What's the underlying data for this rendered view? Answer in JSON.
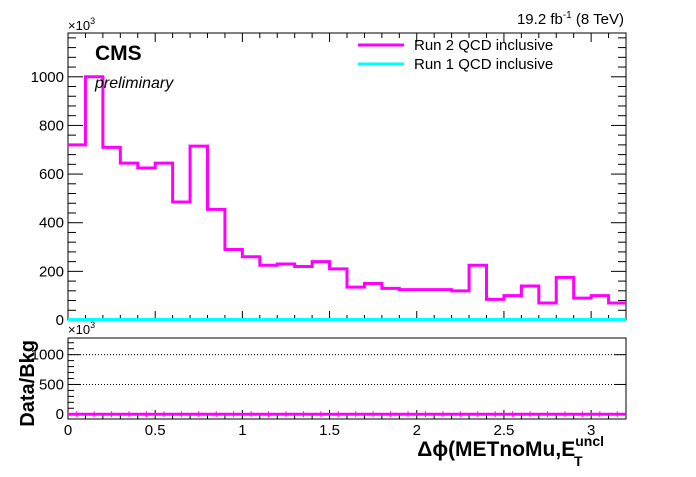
{
  "chart_data": [
    {
      "type": "line",
      "panel": "main",
      "exponent_label": "×10",
      "exponent_power": "3",
      "lumi_value": "19.2 fb",
      "lumi_power": "-1",
      "lumi_energy": " (8 TeV)",
      "cms_label": "CMS",
      "cms_sublabel": "preliminary",
      "xlim": [
        0,
        3.2
      ],
      "ylim": [
        0,
        1180
      ],
      "grid": false,
      "legend_position": "top-right",
      "x_ticks": [
        0,
        0.5,
        1,
        1.5,
        2,
        2.5,
        3
      ],
      "x_tick_labels": [
        "0",
        "0.5",
        "1",
        "1.5",
        "2",
        "2.5",
        "3"
      ],
      "y_ticks": [
        0,
        200,
        400,
        600,
        800,
        1000
      ],
      "y_tick_labels": [
        "0",
        "200",
        "400",
        "600",
        "800",
        "1000"
      ],
      "bin_edges": [
        0,
        0.1,
        0.2,
        0.3,
        0.4,
        0.5,
        0.6,
        0.7,
        0.8,
        0.9,
        1.0,
        1.1,
        1.2,
        1.3,
        1.4,
        1.5,
        1.6,
        1.7,
        1.8,
        1.9,
        2.0,
        2.1,
        2.2,
        2.3,
        2.4,
        2.5,
        2.6,
        2.7,
        2.8,
        2.9,
        3.0,
        3.1,
        3.2
      ],
      "series": [
        {
          "name": "Run 2 QCD inclusive",
          "color": "#ff00ff",
          "values": [
            720,
            1000,
            710,
            645,
            625,
            645,
            485,
            715,
            455,
            290,
            260,
            225,
            230,
            220,
            240,
            210,
            135,
            150,
            130,
            125,
            125,
            125,
            120,
            225,
            85,
            100,
            140,
            70,
            175,
            90,
            100,
            70
          ]
        },
        {
          "name": "Run 1 QCD inclusive",
          "color": "#00ffff",
          "values": [
            2,
            2,
            2,
            2,
            2,
            2,
            2,
            2,
            2,
            2,
            2,
            2,
            2,
            2,
            2,
            2,
            2,
            2,
            2,
            2,
            2,
            2,
            2,
            2,
            2,
            2,
            2,
            2,
            2,
            2,
            2,
            2
          ]
        }
      ]
    },
    {
      "type": "line",
      "panel": "ratio",
      "ylabel": "Data/Bkg",
      "xlabel_base": "Δϕ(METnoMu,E",
      "xlabel_sub": "T",
      "xlabel_sup": "uncl",
      "exponent_label": "×10",
      "exponent_power": "3",
      "xlim": [
        0,
        3.2
      ],
      "ylim": [
        -80,
        1280
      ],
      "grid_lines": [
        500,
        1000
      ],
      "y_ticks": [
        0,
        500,
        1000
      ],
      "y_tick_labels": [
        "0",
        "500",
        "1000"
      ],
      "x_ticks": [
        0,
        0.5,
        1,
        1.5,
        2,
        2.5,
        3
      ],
      "x_tick_labels": [
        "0",
        "0.5",
        "1",
        "1.5",
        "2",
        "2.5",
        "3"
      ],
      "series": [
        {
          "name": "",
          "color": "#ff00ff",
          "values": [
            0,
            0,
            0,
            0,
            0,
            0,
            0,
            0,
            0,
            0,
            0,
            0,
            0,
            0,
            0,
            0,
            0,
            0,
            0,
            0,
            0,
            0,
            0,
            0,
            0,
            0,
            0,
            0,
            0,
            0,
            0,
            0
          ]
        }
      ]
    }
  ]
}
